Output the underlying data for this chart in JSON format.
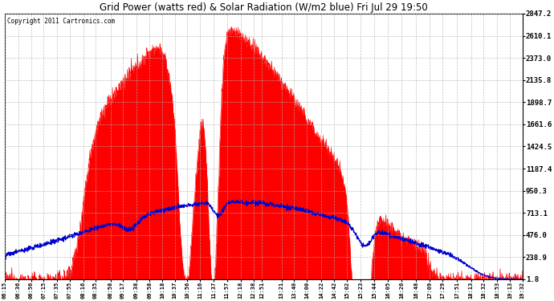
{
  "title": "Grid Power (watts red) & Solar Radiation (W/m2 blue) Fri Jul 29 19:50",
  "copyright": "Copyright 2011 Cartronics.com",
  "bg_color": "#ffffff",
  "plot_bg_color": "#ffffff",
  "grid_color": "#b0b0b0",
  "red_color": "#ff0000",
  "blue_color": "#0000cc",
  "y_ticks": [
    1.8,
    238.9,
    476.0,
    713.1,
    950.3,
    1187.4,
    1424.5,
    1661.6,
    1898.7,
    2135.8,
    2373.0,
    2610.1,
    2847.2
  ],
  "x_labels": [
    "06:15",
    "06:36",
    "06:56",
    "07:15",
    "07:35",
    "07:55",
    "08:16",
    "08:35",
    "08:58",
    "09:17",
    "09:38",
    "09:58",
    "10:18",
    "10:37",
    "10:56",
    "11:16",
    "11:37",
    "11:57",
    "12:18",
    "12:38",
    "12:51",
    "13:21",
    "13:40",
    "14:00",
    "14:22",
    "14:42",
    "15:02",
    "15:23",
    "15:44",
    "16:05",
    "16:26",
    "16:48",
    "17:09",
    "17:29",
    "17:51",
    "18:13",
    "18:32",
    "18:53",
    "19:13",
    "19:32"
  ],
  "ymax": 2847.2,
  "ymin": 0
}
